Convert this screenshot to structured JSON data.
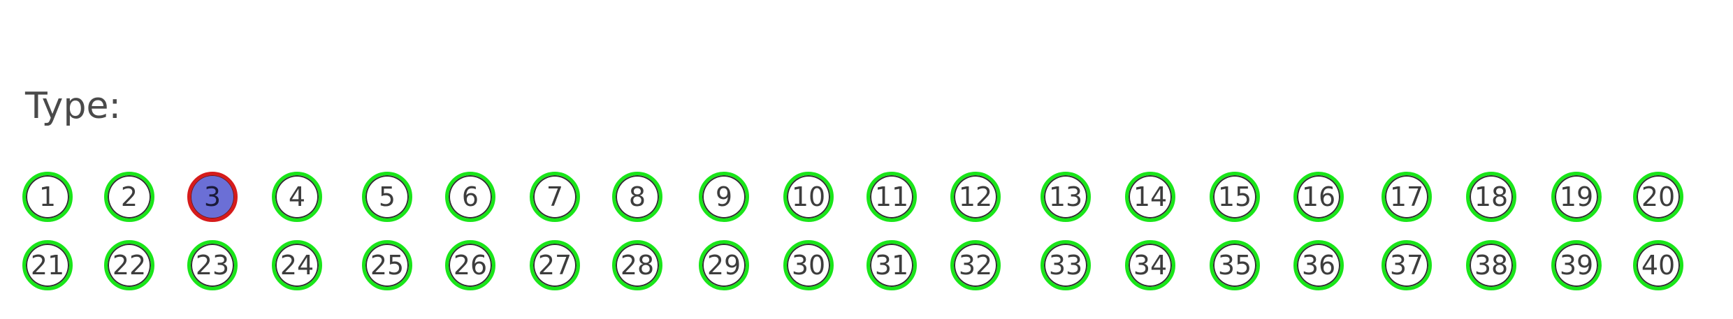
{
  "type_label": "Type:",
  "selected": "3",
  "colors": {
    "ring": "#19e619",
    "selected_ring": "#d61b1b",
    "selected_fill": "#6b6fd6",
    "text": "#3d3d3d"
  },
  "choices": [
    "1",
    "2",
    "3",
    "4",
    "5",
    "6",
    "7",
    "8",
    "9",
    "10",
    "11",
    "12",
    "13",
    "14",
    "15",
    "16",
    "17",
    "18",
    "19",
    "20",
    "21",
    "22",
    "23",
    "24",
    "25",
    "26",
    "27",
    "28",
    "29",
    "30",
    "31",
    "32",
    "33",
    "34",
    "35",
    "36",
    "37",
    "38",
    "39",
    "40"
  ]
}
